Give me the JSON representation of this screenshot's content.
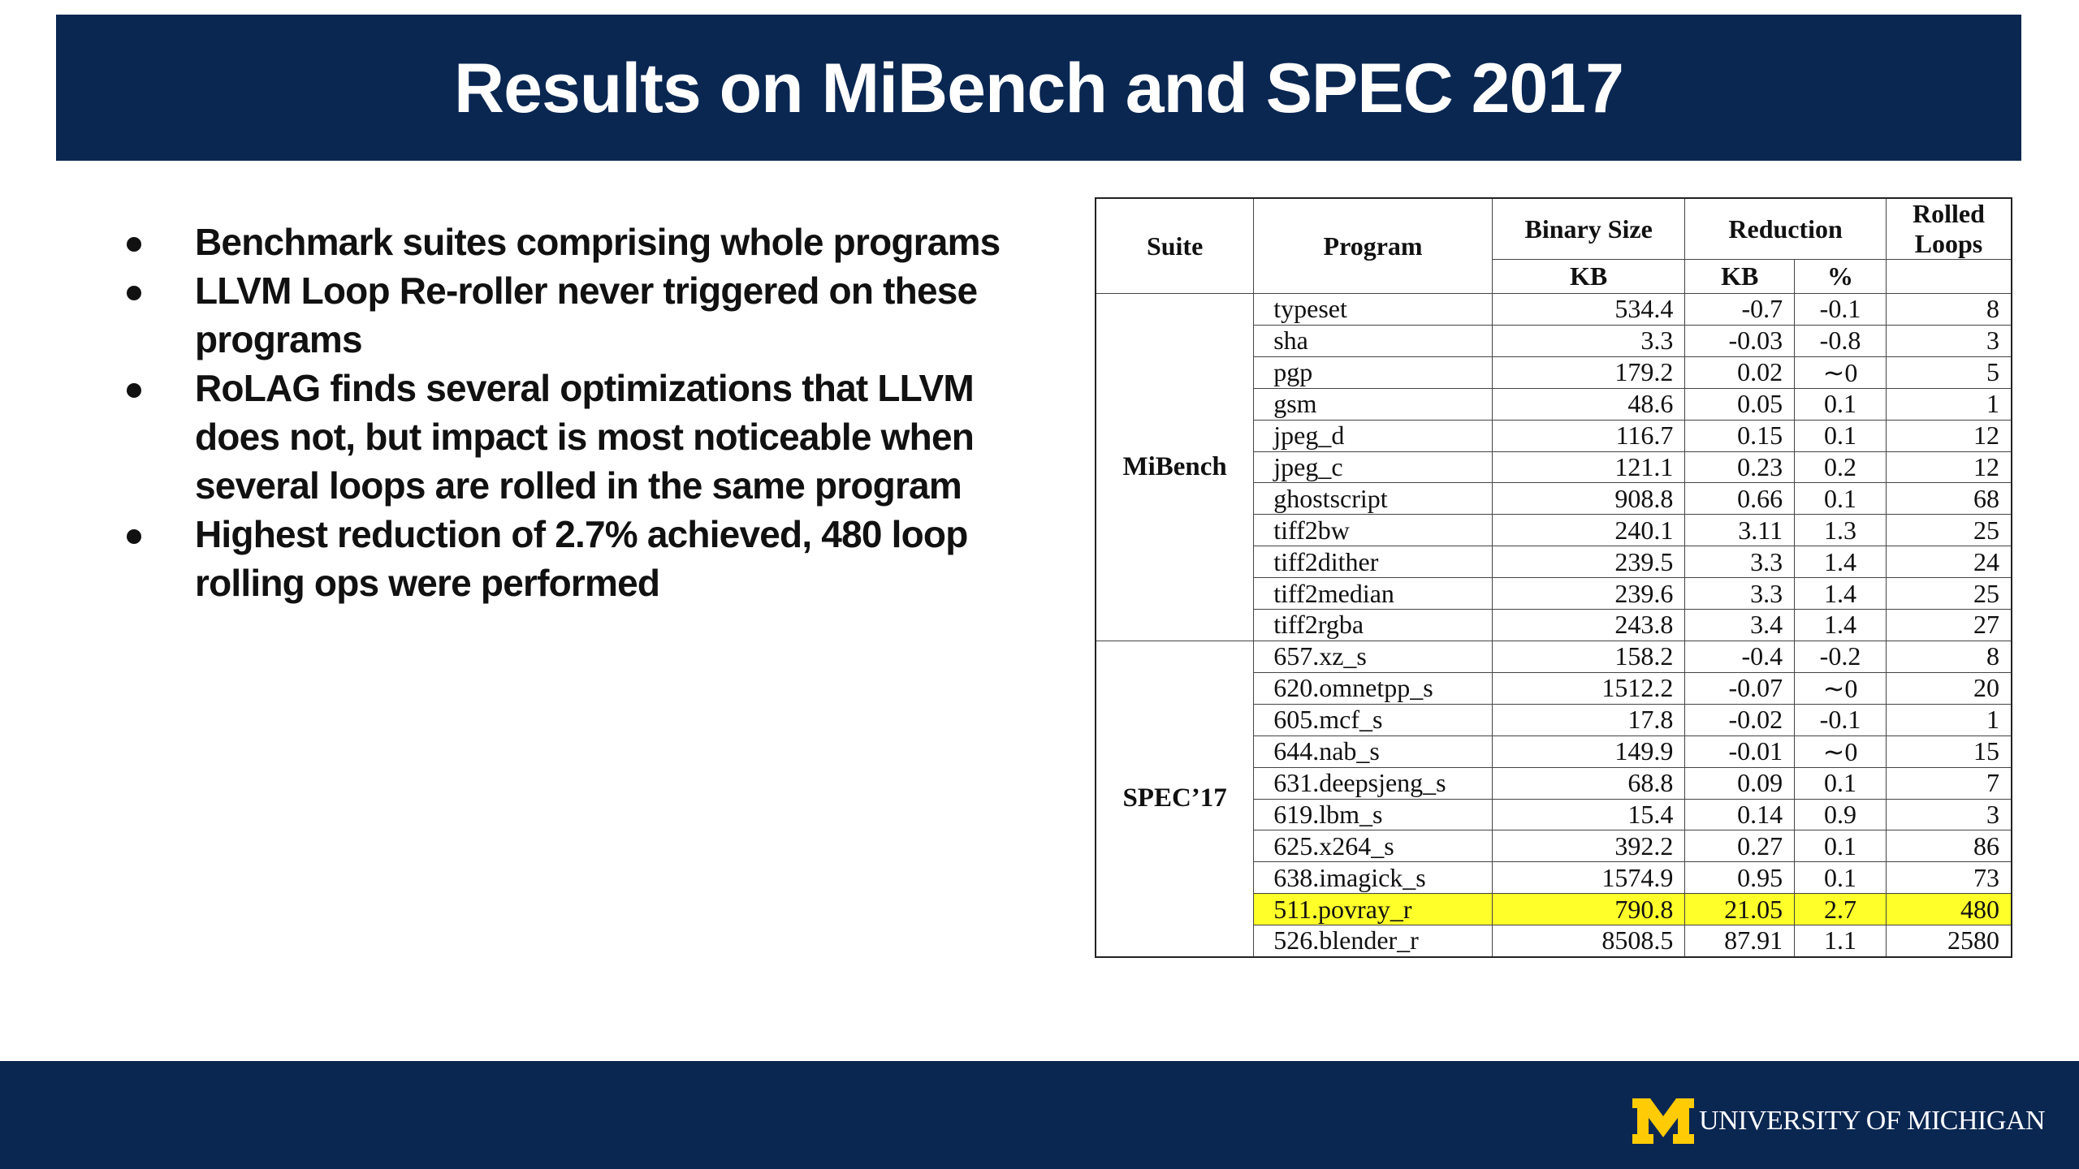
{
  "slide": {
    "title": "Results on MiBench and SPEC 2017",
    "bullets": [
      "Benchmark suites comprising whole programs",
      "LLVM Loop Re-roller never triggered on these programs",
      "RoLAG finds several optimizations that LLVM does not, but impact is most noticeable when several loops are rolled in the same program",
      "Highest reduction of 2.7% achieved, 480 loop rolling ops were performed"
    ]
  },
  "table": {
    "headers": {
      "suite": "Suite",
      "program": "Program",
      "binary_size": "Binary Size",
      "binary_size_unit": "KB",
      "reduction": "Reduction",
      "reduction_kb": "KB",
      "reduction_pct": "%",
      "rolled": "Rolled",
      "loops": "Loops"
    },
    "suites": [
      "MiBench",
      "SPEC’17"
    ],
    "rows": [
      {
        "program": "typeset",
        "size": "534.4",
        "red_kb": "-0.7",
        "red_pct": "-0.1",
        "loops": "8"
      },
      {
        "program": "sha",
        "size": "3.3",
        "red_kb": "-0.03",
        "red_pct": "-0.8",
        "loops": "3"
      },
      {
        "program": "pgp",
        "size": "179.2",
        "red_kb": "0.02",
        "red_pct": "∼0",
        "loops": "5"
      },
      {
        "program": "gsm",
        "size": "48.6",
        "red_kb": "0.05",
        "red_pct": "0.1",
        "loops": "1"
      },
      {
        "program": "jpeg_d",
        "size": "116.7",
        "red_kb": "0.15",
        "red_pct": "0.1",
        "loops": "12"
      },
      {
        "program": "jpeg_c",
        "size": "121.1",
        "red_kb": "0.23",
        "red_pct": "0.2",
        "loops": "12"
      },
      {
        "program": "ghostscript",
        "size": "908.8",
        "red_kb": "0.66",
        "red_pct": "0.1",
        "loops": "68"
      },
      {
        "program": "tiff2bw",
        "size": "240.1",
        "red_kb": "3.11",
        "red_pct": "1.3",
        "loops": "25"
      },
      {
        "program": "tiff2dither",
        "size": "239.5",
        "red_kb": "3.3",
        "red_pct": "1.4",
        "loops": "24"
      },
      {
        "program": "tiff2median",
        "size": "239.6",
        "red_kb": "3.3",
        "red_pct": "1.4",
        "loops": "25"
      },
      {
        "program": "tiff2rgba",
        "size": "243.8",
        "red_kb": "3.4",
        "red_pct": "1.4",
        "loops": "27"
      },
      {
        "program": "657.xz_s",
        "size": "158.2",
        "red_kb": "-0.4",
        "red_pct": "-0.2",
        "loops": "8"
      },
      {
        "program": "620.omnetpp_s",
        "size": "1512.2",
        "red_kb": "-0.07",
        "red_pct": "∼0",
        "loops": "20"
      },
      {
        "program": "605.mcf_s",
        "size": "17.8",
        "red_kb": "-0.02",
        "red_pct": "-0.1",
        "loops": "1"
      },
      {
        "program": "644.nab_s",
        "size": "149.9",
        "red_kb": "-0.01",
        "red_pct": "∼0",
        "loops": "15"
      },
      {
        "program": "631.deepsjeng_s",
        "size": "68.8",
        "red_kb": "0.09",
        "red_pct": "0.1",
        "loops": "7"
      },
      {
        "program": "619.lbm_s",
        "size": "15.4",
        "red_kb": "0.14",
        "red_pct": "0.9",
        "loops": "3"
      },
      {
        "program": "625.x264_s",
        "size": "392.2",
        "red_kb": "0.27",
        "red_pct": "0.1",
        "loops": "86"
      },
      {
        "program": "638.imagick_s",
        "size": "1574.9",
        "red_kb": "0.95",
        "red_pct": "0.1",
        "loops": "73"
      },
      {
        "program": "511.povray_r",
        "size": "790.8",
        "red_kb": "21.05",
        "red_pct": "2.7",
        "loops": "480"
      },
      {
        "program": "526.blender_r",
        "size": "8508.5",
        "red_kb": "87.91",
        "red_pct": "1.1",
        "loops": "2580"
      }
    ],
    "highlight_color": "#ffff2a"
  },
  "footer": {
    "logo_text": "UNIVERSITY OF MICHIGAN",
    "logo_icon": "block-m-icon",
    "brand_navy": "#0a2752",
    "brand_maize": "#ffcb05"
  }
}
